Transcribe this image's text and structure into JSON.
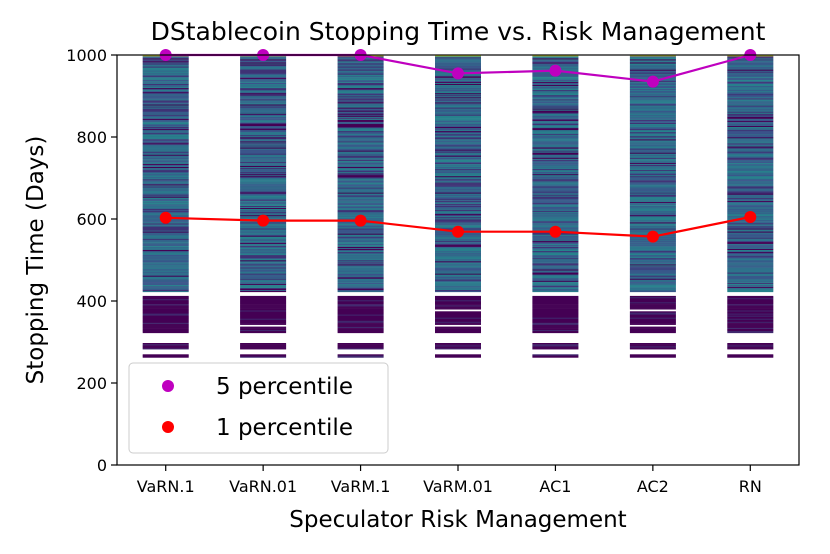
{
  "chart_data": {
    "type": "line",
    "title": "DStablecoin Stopping Time vs. Risk Management",
    "xlabel": "Speculator Risk Management",
    "ylabel": "Stopping Time (Days)",
    "ylim": [
      0,
      1000
    ],
    "yticks": [
      0,
      200,
      400,
      600,
      800,
      1000
    ],
    "categories": [
      "VaRN.1",
      "VaRN.01",
      "VaRM.1",
      "VaRM.01",
      "AC1",
      "AC2",
      "RN"
    ],
    "series": [
      {
        "name": "5 percentile",
        "color": "#bf00bf",
        "values": [
          1000,
          1000,
          1000,
          955,
          962,
          935,
          1000
        ]
      },
      {
        "name": "1 percentile",
        "color": "#ff0000",
        "values": [
          603,
          596,
          596,
          569,
          569,
          557,
          605
        ]
      }
    ],
    "distribution_bars": {
      "range": [
        255,
        1000
      ],
      "colormap": [
        "#440154",
        "#3b528b",
        "#21918c",
        "#5ec962",
        "#fde725"
      ]
    },
    "legend": {
      "position": "lower-left",
      "entries": [
        "5 percentile",
        "1 percentile"
      ]
    }
  }
}
